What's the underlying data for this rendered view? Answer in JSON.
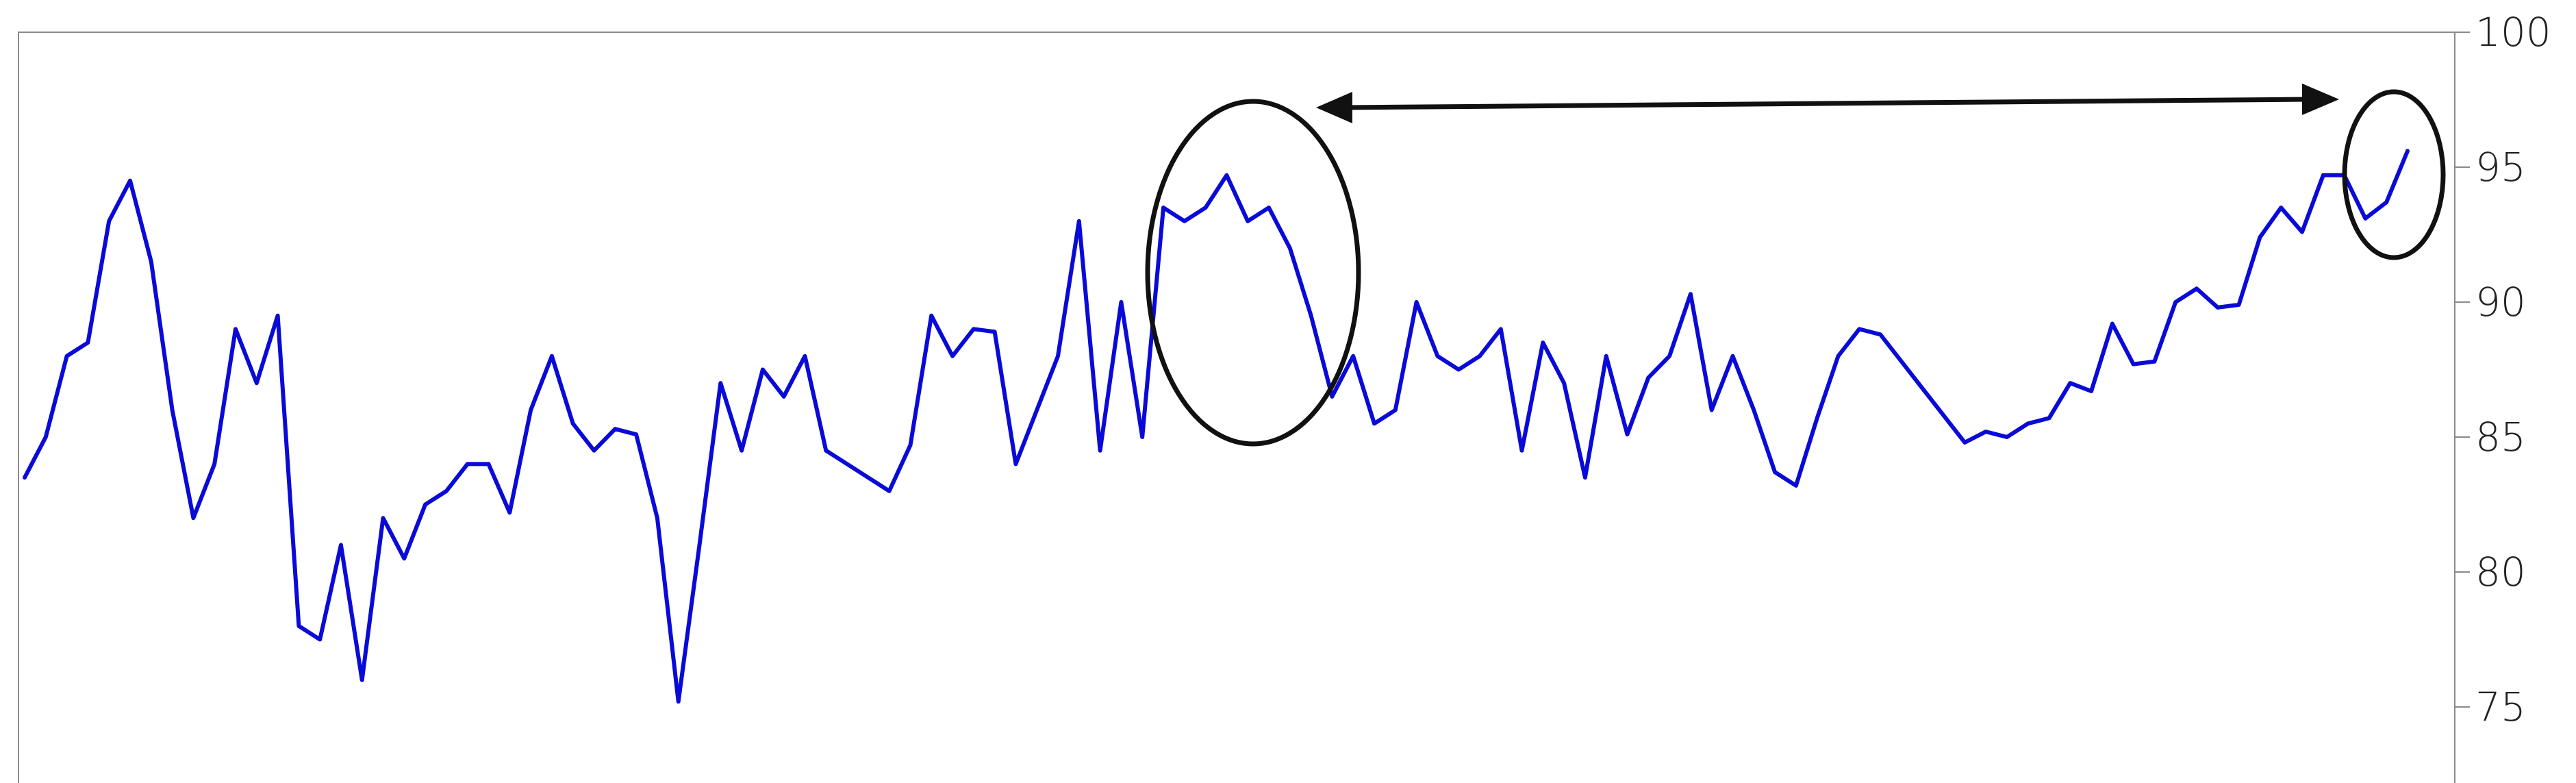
{
  "chart_data": {
    "type": "line",
    "title": "",
    "xlabel": "",
    "ylabel": "",
    "ylim": [
      73,
      100
    ],
    "y_axis_side": "right",
    "y_ticks": [
      75,
      80,
      85,
      90,
      95,
      100
    ],
    "y_tick_labels": [
      "75",
      "80",
      "85",
      "90",
      "95",
      "100"
    ],
    "grid": false,
    "legend": "none",
    "series": [
      {
        "color": "#0a0ad8",
        "x": [
          0,
          1,
          2,
          3,
          4,
          5,
          6,
          7,
          8,
          9,
          10,
          11,
          12,
          13,
          14,
          15,
          16,
          17,
          18,
          19,
          20,
          21,
          22,
          23,
          24,
          25,
          26,
          27,
          28,
          29,
          30,
          31,
          32,
          33,
          34,
          35,
          36,
          37,
          38,
          39,
          40,
          41,
          42,
          43,
          44,
          45,
          46,
          47,
          48,
          49,
          50,
          51,
          52,
          53,
          54,
          55,
          56,
          57,
          58,
          59,
          60,
          61,
          62,
          63,
          64,
          65,
          66,
          67,
          68,
          69,
          70,
          71,
          72,
          73,
          74,
          75,
          76,
          77,
          78,
          79,
          80,
          81,
          82,
          83,
          84,
          85,
          86,
          87,
          88,
          89,
          90,
          91,
          92,
          93,
          94,
          95,
          96,
          97,
          98,
          99,
          100,
          101,
          102,
          103,
          104,
          105,
          106,
          107,
          108,
          109,
          110,
          111,
          112,
          113
        ],
        "values": [
          83.5,
          85,
          88,
          88.5,
          93,
          94.5,
          91.5,
          86,
          82,
          84,
          89,
          87,
          89.5,
          78,
          77.5,
          81,
          76,
          82,
          80.5,
          82.5,
          83,
          84,
          84,
          82.2,
          86,
          88,
          85.5,
          84.5,
          85.3,
          85.1,
          82,
          75.2,
          81,
          87,
          84.5,
          87.5,
          86.5,
          88,
          84.5,
          84,
          83.5,
          83,
          84.7,
          89.5,
          88,
          89,
          88.9,
          84,
          86,
          88,
          93,
          84.5,
          90,
          85,
          93.5,
          93,
          93.5,
          94.7,
          93,
          93.5,
          92,
          89.5,
          86.5,
          88,
          85.5,
          86,
          90,
          88,
          87.5,
          88,
          89,
          84.5,
          88.5,
          87,
          83.5,
          88,
          85.1,
          87.2,
          88,
          90.3,
          86,
          88,
          86,
          83.7,
          83.2,
          85.7,
          88,
          89,
          88.8,
          87.8,
          86.8,
          85.8,
          84.8,
          85.2,
          85,
          85.5,
          85.7,
          87,
          86.7,
          89.2,
          87.7,
          87.8,
          90,
          90.5,
          89.8,
          89.9,
          92.4,
          93.5,
          92.6,
          94.7,
          94.7,
          93.1,
          93.7,
          95.6
        ]
      }
    ],
    "annotations": [
      {
        "type": "ellipse",
        "target_index_range": [
          53,
          62
        ]
      },
      {
        "type": "ellipse",
        "target_index_range": [
          110,
          113
        ]
      },
      {
        "type": "double-arrow",
        "from": "first-ellipse",
        "to": "second-ellipse"
      }
    ]
  }
}
